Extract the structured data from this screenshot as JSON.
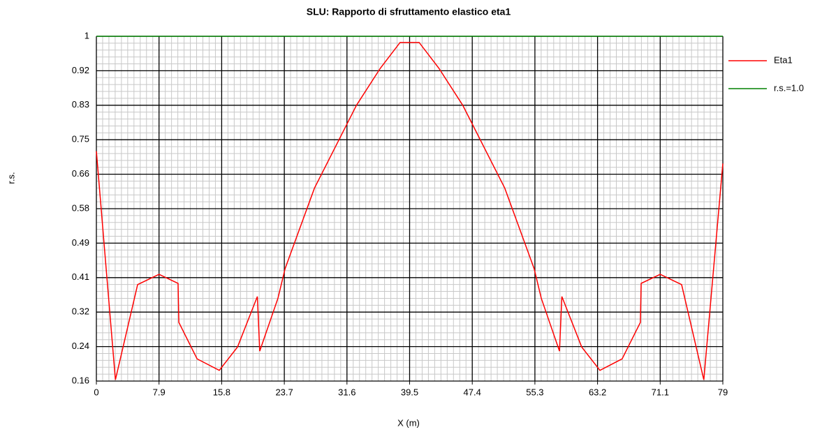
{
  "chart_data": {
    "type": "line",
    "title": "SLU: Rapporto di sfruttamento elastico eta1",
    "xlabel": "X (m)",
    "ylabel": "r.s.",
    "xlim": [
      0,
      79
    ],
    "xticks": [
      0,
      7.9,
      15.8,
      23.7,
      31.6,
      39.5,
      47.4,
      55.3,
      63.2,
      71.1,
      79
    ],
    "ylim": [
      0.16,
      1
    ],
    "yticks": [
      {
        "value": 0.16,
        "label": "0.16"
      },
      {
        "value": 0.244,
        "label": "0.24"
      },
      {
        "value": 0.328,
        "label": "0.32"
      },
      {
        "value": 0.412,
        "label": "0.41"
      },
      {
        "value": 0.496,
        "label": "0.49"
      },
      {
        "value": 0.58,
        "label": "0.58"
      },
      {
        "value": 0.664,
        "label": "0.66"
      },
      {
        "value": 0.748,
        "label": "0.75"
      },
      {
        "value": 0.832,
        "label": "0.83"
      },
      {
        "value": 0.916,
        "label": "0.92"
      },
      {
        "value": 1,
        "label": "1"
      }
    ],
    "grid": true,
    "legend": "right",
    "series": [
      {
        "name": "Eta1",
        "color": "#ff0000",
        "x": [
          0,
          2.4,
          5.2,
          7.9,
          10.3,
          10.4,
          12.7,
          15.5,
          17.8,
          20.3,
          20.6,
          22.9,
          23.8,
          27.5,
          32.8,
          35.8,
          38.3,
          40.7,
          43.2,
          46.2,
          51.5,
          55.2,
          56.1,
          58.4,
          58.7,
          61.2,
          63.5,
          66.3,
          68.6,
          68.7,
          71.1,
          73.8,
          76.6,
          79
        ],
        "values": [
          0.72,
          0.163,
          0.395,
          0.42,
          0.398,
          0.303,
          0.214,
          0.186,
          0.243,
          0.366,
          0.233,
          0.362,
          0.434,
          0.63,
          0.832,
          0.922,
          0.985,
          0.985,
          0.922,
          0.832,
          0.63,
          0.434,
          0.362,
          0.233,
          0.366,
          0.243,
          0.186,
          0.214,
          0.303,
          0.398,
          0.42,
          0.395,
          0.163,
          0.69
        ]
      },
      {
        "name": "r.s.=1.0",
        "color": "#008000",
        "x": [
          0,
          79
        ],
        "values": [
          1,
          1
        ]
      }
    ]
  }
}
